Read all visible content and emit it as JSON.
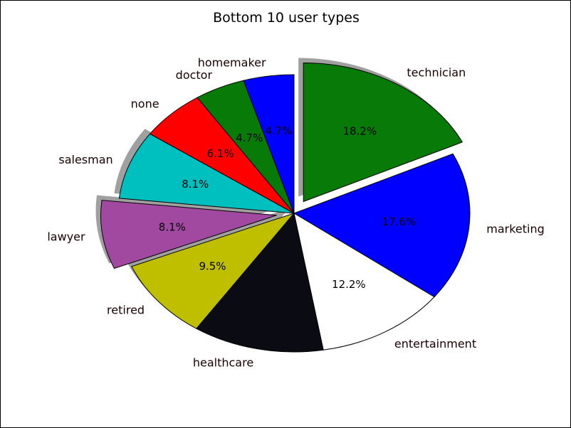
{
  "chart_data": {
    "type": "pie",
    "title": "Bottom 10 user types",
    "slices": [
      {
        "label": "technician",
        "percent_label": "18.2%",
        "value": 18.2,
        "color": "#087a08",
        "explode": true,
        "shadow": true
      },
      {
        "label": "marketing",
        "percent_label": "17.6%",
        "value": 17.6,
        "color": "#0000ff",
        "explode": false,
        "shadow": false
      },
      {
        "label": "entertainment",
        "percent_label": "12.2%",
        "value": 12.2,
        "color": "#ffffff",
        "explode": false,
        "shadow": false
      },
      {
        "label": "healthcare",
        "percent_label": "",
        "value": 12.2,
        "color": "#0b0b14",
        "explode": false,
        "shadow": false
      },
      {
        "label": "retired",
        "percent_label": "9.5%",
        "value": 9.5,
        "color": "#bfbf00",
        "explode": false,
        "shadow": true
      },
      {
        "label": "lawyer",
        "percent_label": "8.1%",
        "value": 8.1,
        "color": "#a148a1",
        "explode": true,
        "shadow": true
      },
      {
        "label": "salesman",
        "percent_label": "8.1%",
        "value": 8.1,
        "color": "#00bfbf",
        "explode": false,
        "shadow": true
      },
      {
        "label": "none",
        "percent_label": "6.1%",
        "value": 6.1,
        "color": "#ff0000",
        "explode": false,
        "shadow": false
      },
      {
        "label": "doctor",
        "percent_label": "4.7%",
        "value": 4.7,
        "color": "#087a08",
        "explode": false,
        "shadow": false
      },
      {
        "label": "homemaker",
        "percent_label": "4.7%",
        "value": 4.7,
        "color": "#0000ff",
        "explode": false,
        "shadow": false
      }
    ],
    "start_angle_deg": 90,
    "direction": "clockwise",
    "legend": "none"
  }
}
